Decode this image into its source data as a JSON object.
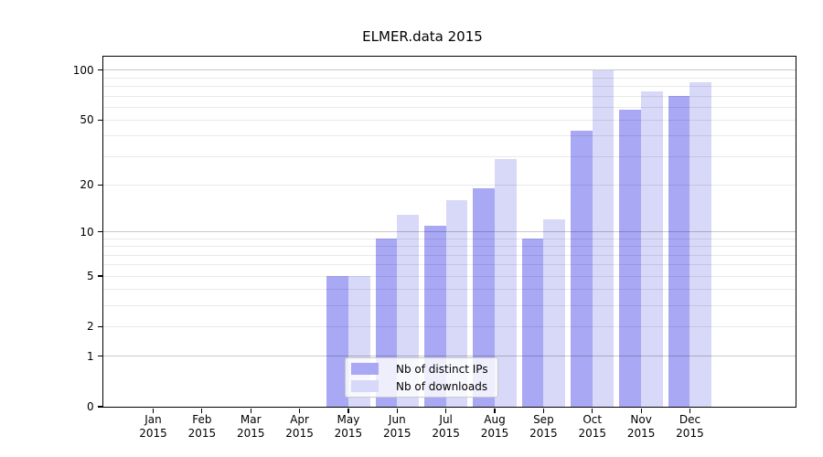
{
  "title": "ELMER.data 2015",
  "chart_data": {
    "type": "bar",
    "title": "ELMER.data 2015",
    "categories": [
      "Jan",
      "Feb",
      "Mar",
      "Apr",
      "May",
      "Jun",
      "Jul",
      "Aug",
      "Sep",
      "Oct",
      "Nov",
      "Dec"
    ],
    "x_tick_second_line": "2015",
    "series": [
      {
        "name": "Nb of distinct IPs",
        "color": "#a8a8f5",
        "values": [
          0,
          0,
          0,
          0,
          5,
          9,
          11,
          19,
          9,
          43,
          58,
          70
        ]
      },
      {
        "name": "Nb of downloads",
        "color": "#d8d8f8",
        "values": [
          0,
          0,
          0,
          0,
          5,
          13,
          16,
          29,
          12,
          100,
          75,
          85
        ]
      }
    ],
    "y_tick_labels": [
      0,
      1,
      2,
      5,
      10,
      20,
      50,
      100
    ],
    "y_major_gridlines": [
      1,
      10,
      100
    ],
    "y_minor_gridlines": [
      2,
      3,
      4,
      5,
      6,
      7,
      8,
      9,
      20,
      30,
      40,
      50,
      60,
      70,
      80,
      90
    ],
    "y_scale": "log10(value+1)",
    "ylim": [
      0,
      121
    ],
    "xlabel": "",
    "ylabel": "",
    "grid": "horizontal",
    "legend_position": "lower-center-inside",
    "axis_color": "#000000",
    "major_grid_color": "#c9c9c9",
    "minor_grid_color": "#e9e9e9"
  }
}
